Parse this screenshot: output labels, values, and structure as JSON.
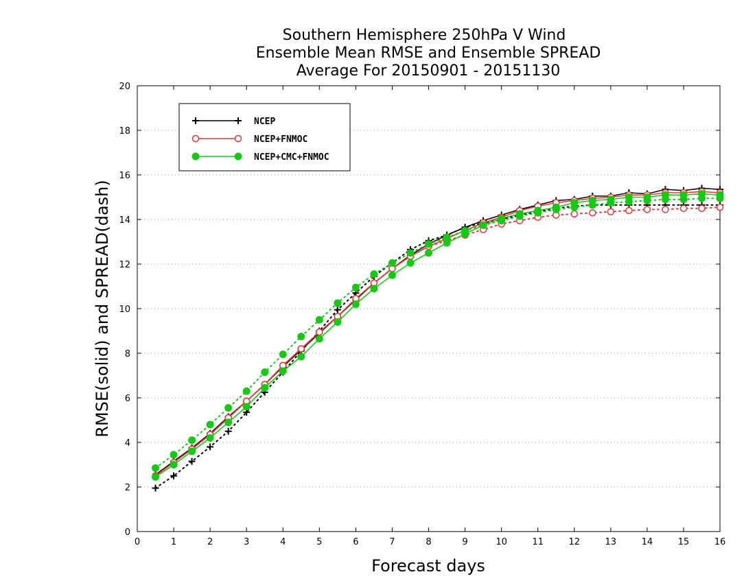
{
  "chart_data": {
    "type": "line",
    "title": [
      "Southern Hemisphere 250hPa V Wind",
      "Ensemble Mean RMSE and Ensemble SPREAD",
      "Average For 20150901 - 20151130"
    ],
    "xlabel": "Forecast days",
    "ylabel": "RMSE(solid) and SPREAD(dash)",
    "xlim": [
      0,
      16
    ],
    "ylim": [
      0,
      20
    ],
    "xticks": [
      0,
      1,
      2,
      3,
      4,
      5,
      6,
      7,
      8,
      9,
      10,
      11,
      12,
      13,
      14,
      15,
      16
    ],
    "yticks": [
      0,
      2,
      4,
      6,
      8,
      10,
      12,
      14,
      16,
      18,
      20
    ],
    "grid": "horizontal dotted",
    "legend_position": "top-left",
    "x": [
      0.5,
      1,
      1.5,
      2,
      2.5,
      3,
      3.5,
      4,
      4.5,
      5,
      5.5,
      6,
      6.5,
      7,
      7.5,
      8,
      8.5,
      9,
      9.5,
      10,
      10.5,
      11,
      11.5,
      12,
      12.5,
      13,
      13.5,
      14,
      14.5,
      15,
      15.5,
      16
    ],
    "series": [
      {
        "name": "NCEP",
        "color": "#000000",
        "marker": "plus",
        "rmse": [
          2.55,
          3.15,
          3.75,
          4.4,
          5.15,
          5.85,
          6.6,
          7.4,
          8.15,
          8.9,
          9.65,
          10.4,
          11.15,
          11.8,
          12.4,
          12.9,
          13.3,
          13.65,
          13.95,
          14.2,
          14.45,
          14.65,
          14.85,
          14.9,
          15.05,
          15.05,
          15.2,
          15.15,
          15.35,
          15.3,
          15.4,
          15.35
        ],
        "spread": [
          1.95,
          2.5,
          3.15,
          3.8,
          4.5,
          5.35,
          6.25,
          7.15,
          8.1,
          9.0,
          9.95,
          10.7,
          11.45,
          12.05,
          12.65,
          13.05,
          13.3,
          13.65,
          13.85,
          14.0,
          14.2,
          14.35,
          14.5,
          14.6,
          14.65,
          14.65,
          14.65,
          14.65,
          14.65,
          14.65,
          14.65,
          14.65
        ]
      },
      {
        "name": "NCEP+FNMOC",
        "color": "#ee3333",
        "marker": "open-circle",
        "rmse": [
          2.5,
          3.1,
          3.7,
          4.35,
          5.1,
          5.85,
          6.6,
          7.45,
          8.2,
          8.95,
          9.65,
          10.45,
          11.15,
          11.8,
          12.35,
          12.8,
          13.15,
          13.5,
          13.85,
          14.1,
          14.4,
          14.6,
          14.75,
          14.85,
          14.95,
          15.0,
          15.1,
          15.1,
          15.2,
          15.2,
          15.25,
          15.2
        ],
        "spread": [
          2.5,
          3.1,
          3.7,
          4.35,
          5.1,
          5.85,
          6.6,
          7.45,
          8.2,
          8.95,
          9.65,
          10.45,
          11.15,
          11.8,
          12.35,
          12.8,
          13.05,
          13.3,
          13.55,
          13.8,
          13.95,
          14.1,
          14.2,
          14.25,
          14.3,
          14.35,
          14.4,
          14.45,
          14.45,
          14.5,
          14.5,
          14.55
        ]
      },
      {
        "name": "NCEP+CMC+FNMOC",
        "color": "#11cc11",
        "marker": "filled-circle",
        "rmse": [
          2.45,
          3.0,
          3.6,
          4.2,
          4.9,
          5.6,
          6.45,
          7.2,
          7.85,
          8.65,
          9.4,
          10.2,
          10.9,
          11.5,
          12.05,
          12.5,
          12.95,
          13.35,
          13.75,
          14.05,
          14.25,
          14.4,
          14.55,
          14.75,
          14.85,
          14.9,
          15.0,
          15.0,
          15.1,
          15.1,
          15.15,
          15.1
        ],
        "spread": [
          2.85,
          3.45,
          4.1,
          4.8,
          5.55,
          6.3,
          7.15,
          7.95,
          8.75,
          9.5,
          10.25,
          10.95,
          11.55,
          12.05,
          12.5,
          12.9,
          13.2,
          13.5,
          13.75,
          13.95,
          14.15,
          14.3,
          14.45,
          14.55,
          14.65,
          14.75,
          14.8,
          14.85,
          14.9,
          14.9,
          14.95,
          14.95
        ]
      }
    ]
  }
}
